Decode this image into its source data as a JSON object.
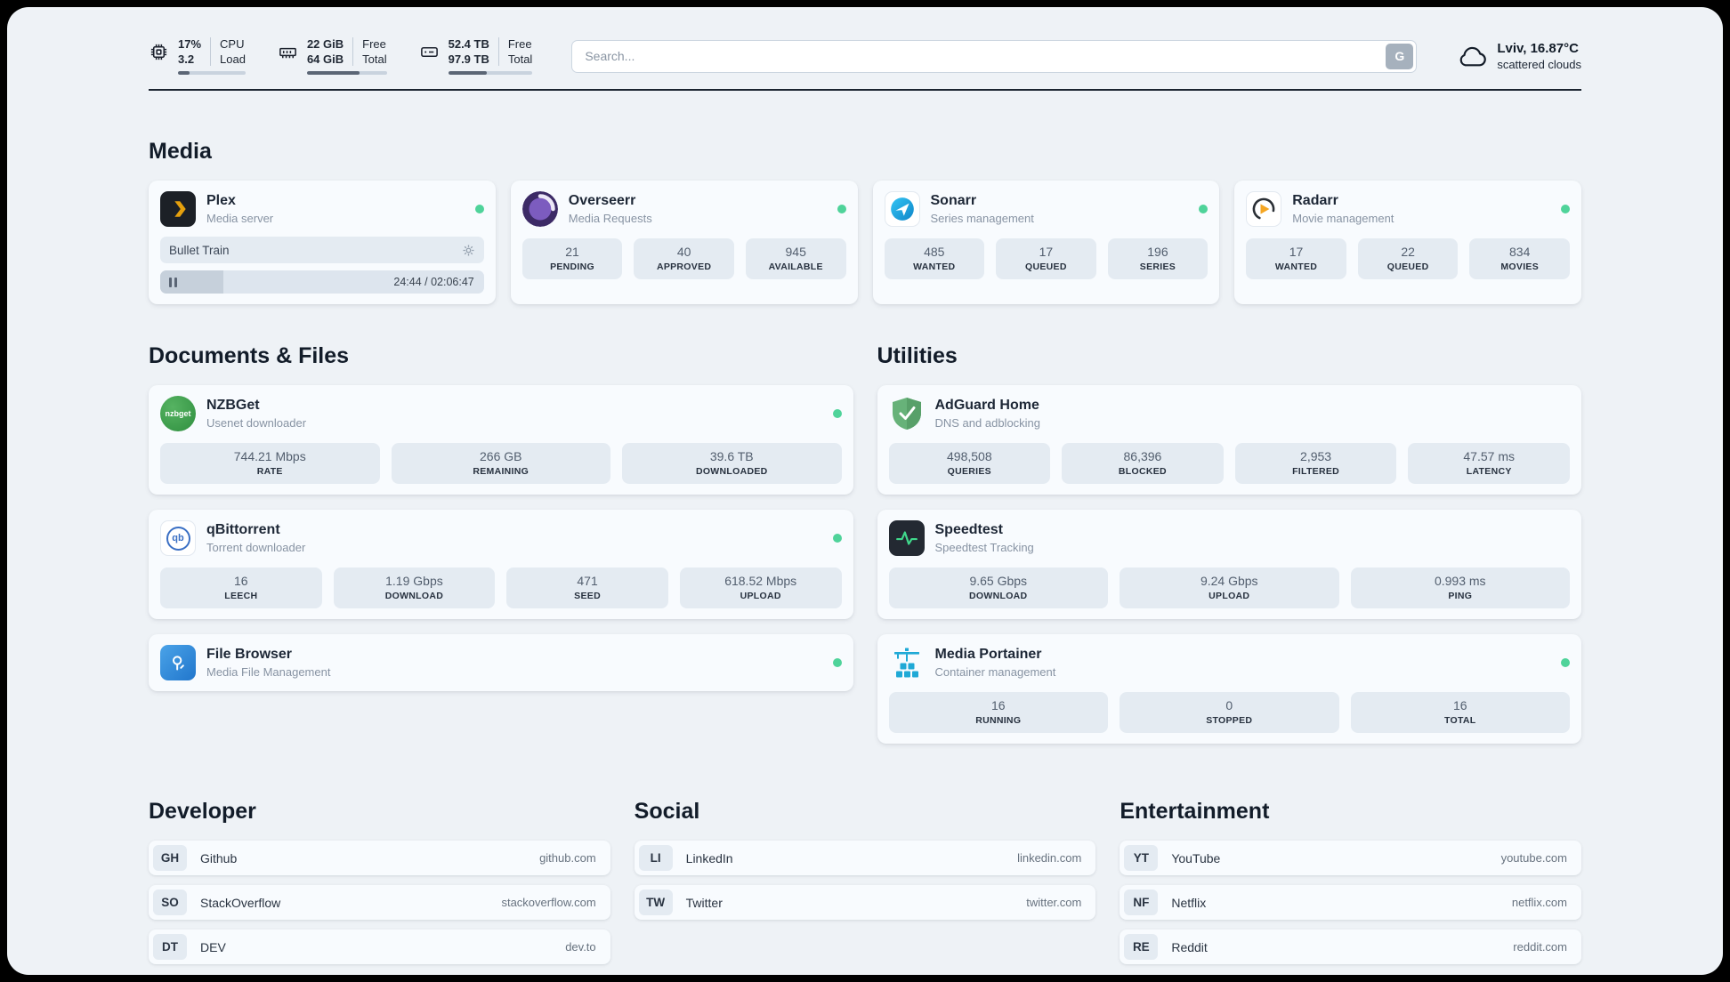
{
  "header": {
    "cpu": {
      "percent": "17%",
      "load": "3.2",
      "label1": "CPU",
      "label2": "Load",
      "bar": 17
    },
    "ram": {
      "free": "22 GiB",
      "total": "64 GiB",
      "label1": "Free",
      "label2": "Total",
      "bar": 66
    },
    "disk": {
      "free": "52.4 TB",
      "total": "97.9 TB",
      "label1": "Free",
      "label2": "Total",
      "bar": 46
    },
    "search": {
      "placeholder": "Search...",
      "button": "G"
    },
    "weather": {
      "location": "Lviv, 16.87°C",
      "condition": "scattered clouds"
    }
  },
  "sections": {
    "media": "Media",
    "documents": "Documents & Files",
    "utilities": "Utilities",
    "developer": "Developer",
    "social": "Social",
    "entertainment": "Entertainment"
  },
  "apps": {
    "plex": {
      "name": "Plex",
      "subtitle": "Media server",
      "now_playing": "Bullet Train",
      "progress": 19.5,
      "time": "24:44 / 02:06:47"
    },
    "overseerr": {
      "name": "Overseerr",
      "subtitle": "Media Requests",
      "stats": [
        {
          "value": "21",
          "label": "PENDING"
        },
        {
          "value": "40",
          "label": "APPROVED"
        },
        {
          "value": "945",
          "label": "AVAILABLE"
        }
      ]
    },
    "sonarr": {
      "name": "Sonarr",
      "subtitle": "Series management",
      "stats": [
        {
          "value": "485",
          "label": "WANTED"
        },
        {
          "value": "17",
          "label": "QUEUED"
        },
        {
          "value": "196",
          "label": "SERIES"
        }
      ]
    },
    "radarr": {
      "name": "Radarr",
      "subtitle": "Movie management",
      "stats": [
        {
          "value": "17",
          "label": "WANTED"
        },
        {
          "value": "22",
          "label": "QUEUED"
        },
        {
          "value": "834",
          "label": "MOVIES"
        }
      ]
    },
    "nzbget": {
      "name": "NZBGet",
      "subtitle": "Usenet downloader",
      "icon_text": "nzbget",
      "stats": [
        {
          "value": "744.21 Mbps",
          "label": "RATE"
        },
        {
          "value": "266 GB",
          "label": "REMAINING"
        },
        {
          "value": "39.6 TB",
          "label": "DOWNLOADED"
        }
      ]
    },
    "qbittorrent": {
      "name": "qBittorrent",
      "subtitle": "Torrent downloader",
      "icon_text": "qb",
      "stats": [
        {
          "value": "16",
          "label": "LEECH"
        },
        {
          "value": "1.19 Gbps",
          "label": "DOWNLOAD"
        },
        {
          "value": "471",
          "label": "SEED"
        },
        {
          "value": "618.52 Mbps",
          "label": "UPLOAD"
        }
      ]
    },
    "filebrowser": {
      "name": "File Browser",
      "subtitle": "Media File Management"
    },
    "adguard": {
      "name": "AdGuard Home",
      "subtitle": "DNS and adblocking",
      "stats": [
        {
          "value": "498,508",
          "label": "QUERIES"
        },
        {
          "value": "86,396",
          "label": "BLOCKED"
        },
        {
          "value": "2,953",
          "label": "FILTERED"
        },
        {
          "value": "47.57 ms",
          "label": "LATENCY"
        }
      ]
    },
    "speedtest": {
      "name": "Speedtest",
      "subtitle": "Speedtest Tracking",
      "stats": [
        {
          "value": "9.65 Gbps",
          "label": "DOWNLOAD"
        },
        {
          "value": "9.24 Gbps",
          "label": "UPLOAD"
        },
        {
          "value": "0.993 ms",
          "label": "PING"
        }
      ]
    },
    "portainer": {
      "name": "Media Portainer",
      "subtitle": "Container management",
      "stats": [
        {
          "value": "16",
          "label": "RUNNING"
        },
        {
          "value": "0",
          "label": "STOPPED"
        },
        {
          "value": "16",
          "label": "TOTAL"
        }
      ]
    }
  },
  "bookmarks": {
    "developer": [
      {
        "abbr": "GH",
        "name": "Github",
        "url": "github.com"
      },
      {
        "abbr": "SO",
        "name": "StackOverflow",
        "url": "stackoverflow.com"
      },
      {
        "abbr": "DT",
        "name": "DEV",
        "url": "dev.to"
      }
    ],
    "social": [
      {
        "abbr": "LI",
        "name": "LinkedIn",
        "url": "linkedin.com"
      },
      {
        "abbr": "TW",
        "name": "Twitter",
        "url": "twitter.com"
      }
    ],
    "entertainment": [
      {
        "abbr": "YT",
        "name": "YouTube",
        "url": "youtube.com"
      },
      {
        "abbr": "NF",
        "name": "Netflix",
        "url": "netflix.com"
      },
      {
        "abbr": "RE",
        "name": "Reddit",
        "url": "reddit.com"
      }
    ]
  },
  "icons": [
    "cpu-icon",
    "ram-icon",
    "disk-icon",
    "search-engine-button",
    "cloud-icon",
    "plex-icon",
    "overseerr-icon",
    "sonarr-icon",
    "radarr-icon",
    "nzbget-icon",
    "qbittorrent-icon",
    "filebrowser-icon",
    "adguard-icon",
    "speedtest-icon",
    "portainer-icon",
    "gear-icon",
    "pause-icon",
    "status-dot"
  ],
  "colors": {
    "page_bg": "#eef2f6",
    "card_bg": "#f8fbfe",
    "stat_bg": "#e4ebf2",
    "status_online": "#4fd39a",
    "plex_accent": "#e5a00d",
    "overseerr_purple": "#5a3d9e",
    "sonarr_blue": "#1b9de2",
    "radarr_orange": "#f5a623",
    "nzbget_green": "#3f9e4d",
    "qbittorrent_blue": "#3a6fc4",
    "filebrowser_blue": "#2d8fe0",
    "adguard_green": "#67b279",
    "speedtest_green": "#40d98c",
    "portainer_teal": "#1fa9d6"
  }
}
